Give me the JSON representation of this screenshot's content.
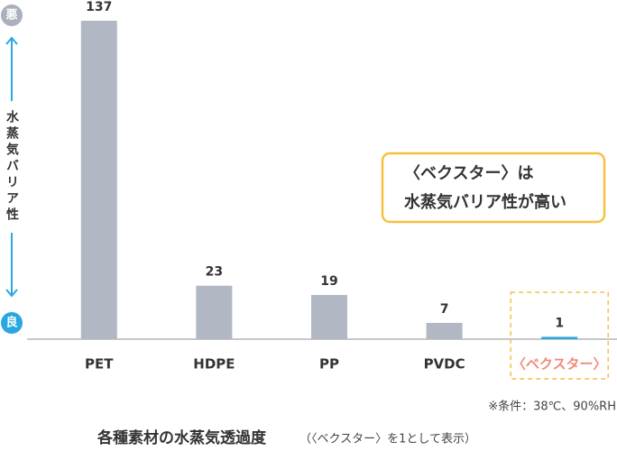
{
  "chart_data": {
    "type": "bar",
    "title": "各種素材の水蒸気透過度",
    "subtitle": "（〈ベクスター〉を1として表示）",
    "categories": [
      "PET",
      "HDPE",
      "PP",
      "PVDC",
      "〈ベクスター〉"
    ],
    "values": [
      137,
      23,
      19,
      7,
      1
    ],
    "colors": [
      "#b1b8c3",
      "#b1b8c3",
      "#b1b8c3",
      "#b1b8c3",
      "#29a8df"
    ],
    "highlight_index": 4,
    "highlight_color": "#f08b7b",
    "axis_top_label": "悪",
    "axis_bottom_label": "良",
    "axis_label": "水蒸気バリア性",
    "annotation": [
      "〈ベクスター〉は",
      "水蒸気バリア性が高い"
    ],
    "note": "※条件：38℃、90%RH"
  }
}
